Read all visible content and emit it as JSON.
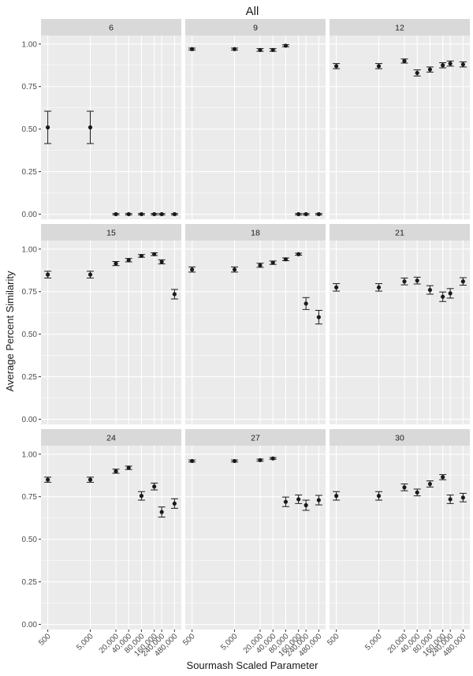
{
  "chart_data": {
    "type": "scatter",
    "title": "All",
    "xlabel": "Sourmash Scaled Parameter",
    "ylabel": "Average Percent Similarity",
    "x_scale": "log",
    "x_ticks": [
      "500",
      "5,000",
      "20,000",
      "40,000",
      "80,000",
      "160,000",
      "240,000",
      "480,000"
    ],
    "x_tick_values": [
      500,
      5000,
      20000,
      40000,
      80000,
      160000,
      240000,
      480000
    ],
    "ylim": [
      -0.03,
      1.05
    ],
    "y_ticks": [
      "0.00",
      "0.25",
      "0.50",
      "0.75",
      "1.00"
    ],
    "y_tick_values": [
      0,
      0.25,
      0.5,
      0.75,
      1.0
    ],
    "grid": true,
    "error_bars": true,
    "panels": [
      {
        "label": "6",
        "x": [
          500,
          5000,
          20000,
          40000,
          80000,
          160000,
          240000,
          480000
        ],
        "y": [
          0.51,
          0.51,
          0.0,
          0.0,
          0.0,
          0.0,
          0.0,
          0.0
        ],
        "err": [
          0.095,
          0.095,
          0.004,
          0.004,
          0.004,
          0.004,
          0.004,
          0.004
        ]
      },
      {
        "label": "9",
        "x": [
          500,
          5000,
          20000,
          40000,
          80000,
          160000,
          240000,
          480000
        ],
        "y": [
          0.97,
          0.97,
          0.965,
          0.965,
          0.99,
          0.0,
          0.0,
          0.0
        ],
        "err": [
          0.006,
          0.006,
          0.008,
          0.008,
          0.006,
          0.004,
          0.004,
          0.004
        ]
      },
      {
        "label": "12",
        "x": [
          500,
          5000,
          20000,
          40000,
          80000,
          160000,
          240000,
          480000
        ],
        "y": [
          0.87,
          0.87,
          0.9,
          0.83,
          0.85,
          0.875,
          0.885,
          0.88
        ],
        "err": [
          0.015,
          0.015,
          0.012,
          0.018,
          0.015,
          0.015,
          0.015,
          0.015
        ]
      },
      {
        "label": "15",
        "x": [
          500,
          5000,
          20000,
          40000,
          80000,
          160000,
          240000,
          480000
        ],
        "y": [
          0.85,
          0.85,
          0.915,
          0.935,
          0.96,
          0.97,
          0.925,
          0.735
        ],
        "err": [
          0.02,
          0.02,
          0.012,
          0.01,
          0.008,
          0.008,
          0.012,
          0.028
        ]
      },
      {
        "label": "18",
        "x": [
          500,
          5000,
          20000,
          40000,
          80000,
          160000,
          240000,
          480000
        ],
        "y": [
          0.88,
          0.88,
          0.905,
          0.92,
          0.94,
          0.97,
          0.68,
          0.6
        ],
        "err": [
          0.015,
          0.015,
          0.012,
          0.01,
          0.008,
          0.006,
          0.035,
          0.04
        ]
      },
      {
        "label": "21",
        "x": [
          500,
          5000,
          20000,
          40000,
          80000,
          160000,
          240000,
          480000
        ],
        "y": [
          0.775,
          0.775,
          0.81,
          0.815,
          0.76,
          0.72,
          0.74,
          0.81
        ],
        "err": [
          0.022,
          0.022,
          0.02,
          0.02,
          0.025,
          0.028,
          0.028,
          0.022
        ]
      },
      {
        "label": "24",
        "x": [
          500,
          5000,
          20000,
          40000,
          80000,
          160000,
          240000,
          480000
        ],
        "y": [
          0.85,
          0.85,
          0.9,
          0.92,
          0.755,
          0.81,
          0.66,
          0.71
        ],
        "err": [
          0.015,
          0.015,
          0.012,
          0.01,
          0.025,
          0.02,
          0.03,
          0.028
        ]
      },
      {
        "label": "27",
        "x": [
          500,
          5000,
          20000,
          40000,
          80000,
          160000,
          240000,
          480000
        ],
        "y": [
          0.96,
          0.96,
          0.965,
          0.975,
          0.72,
          0.735,
          0.7,
          0.73
        ],
        "err": [
          0.006,
          0.006,
          0.006,
          0.005,
          0.028,
          0.025,
          0.03,
          0.028
        ]
      },
      {
        "label": "30",
        "x": [
          500,
          5000,
          20000,
          40000,
          80000,
          160000,
          240000,
          480000
        ],
        "y": [
          0.755,
          0.755,
          0.805,
          0.775,
          0.825,
          0.865,
          0.735,
          0.745
        ],
        "err": [
          0.025,
          0.025,
          0.02,
          0.02,
          0.018,
          0.015,
          0.025,
          0.025
        ]
      }
    ]
  },
  "colors": {
    "panel_bg": "#ebebeb",
    "strip_bg": "#d9d9d9",
    "grid": "#ffffff",
    "point": "#1a1a1a",
    "text": "#1a1a1a",
    "tick_text": "#4d4d4d"
  }
}
